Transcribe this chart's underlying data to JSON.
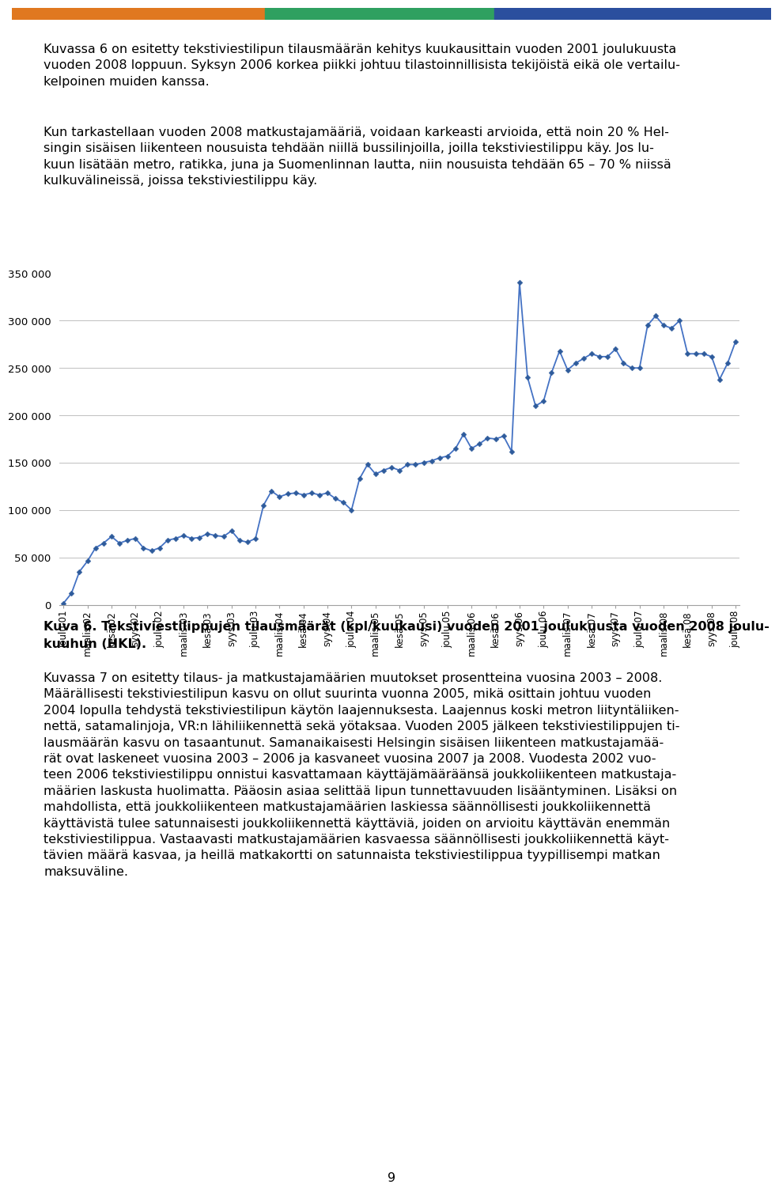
{
  "text_top1": "Kuvassa 6 on esitetty tekstiviestilipun tilausmäärän kehitys kuukausittain vuoden 2001 joulukuusta\nvuoden 2008 loppuun. Syksyn 2006 korkea piikki johtuu tilastoinnillisista tekijöistä eikä ole vertailu-\nkelpoinen muiden kanssa.",
  "text_top2": "Kun tarkastellaan vuoden 2008 matkustajamääriä, voidaan karkeasti arvioida, että noin 20 % Hel-\nsingin sisäisen liikenteen nousuista tehdään niillä bussilinjoilla, joilla tekstiviestilippu käy. Jos lu-\nkuun lisätään metro, ratikka, juna ja Suomenlinnan lautta, niin nousuista tehdään 65 – 70 % niissä\nkulkuvälineissä, joissa tekstiviestilippu käy.",
  "caption_line1": "Kuva 6. Tekstiviestilippujen tilausmäärät (kpl/kuukausi) vuoden 2001 joulukuusta vuoden 2008 joulu-",
  "caption_line2": "kuuhun (HKL).",
  "text_bottom": "Kuvassa 7 on esitetty tilaus- ja matkustajamäärien muutokset prosentteina vuosina 2003 – 2008.\nMäärällisesti tekstiviestilipun kasvu on ollut suurinta vuonna 2005, mikä osittain johtuu vuoden\n2004 lopulla tehdystä tekstiviestilipun käytön laajennuksesta. Laajennus koski metron liityntäliiken-\nnettä, satamalinjoja, VR:n lähiliikennettä sekä yötaksaa. Vuoden 2005 jälkeen tekstiviestilippujen ti-\nlausmäärän kasvu on tasaantunut. Samanaikaisesti Helsingin sisäisen liikenteen matkustajamää-\nrät ovat laskeneet vuosina 2003 – 2006 ja kasvaneet vuosina 2007 ja 2008. Vuodesta 2002 vuo-\nteen 2006 tekstiviestilippu onnistui kasvattamaan käyttäjämääräänsä joukkoliikenteen matkustaja-\nmäärien laskusta huolimatta. Pääosin asiaa selittää lipun tunnettavuuden lisääntyminen. Lisäksi on\nmahdollista, että joukkoliikenteen matkustajamäärien laskiessa säännöllisesti joukkoliikennettä\nkäyttävistä tulee satunnaisesti joukkoliikennettä käyttäviä, joiden on arvioitu käyttävän enemmän\ntekstiviestilippua. Vastaavasti matkustajamäärien kasvaessa säännöllisesti joukkoliikennettä käyt-\ntävien määrä kasvaa, ja heillä matkakortti on satunnaista tekstiviestilippua tyypillisempi matkan\nmaksuväline.",
  "page_number": "9",
  "header_colors": [
    "#E07820",
    "#2FA060",
    "#2B4F9E"
  ],
  "line_color": "#4472C4",
  "marker_color": "#2E5B9B",
  "chart_bg": "#FFFFFF",
  "grid_color": "#C0C0C0",
  "ylim": [
    0,
    350000
  ],
  "yticks": [
    0,
    50000,
    100000,
    150000,
    200000,
    250000,
    300000,
    350000
  ],
  "ytick_labels": [
    "0",
    "50 000",
    "100 000",
    "150 000",
    "200 000",
    "250 000",
    "300 000",
    "350 000"
  ],
  "x_labels": [
    "joulu.01",
    "maalis.02",
    "kesä.02",
    "syys.02",
    "joulu.02",
    "maalis.03",
    "kesä.03",
    "syys.03",
    "joulu.03",
    "maalis.04",
    "kesä.04",
    "syys.04",
    "joulu.04",
    "maalis.05",
    "kesä.05",
    "syys.05",
    "joulu.05",
    "maalis.06",
    "kesä.06",
    "syys.06",
    "joulu.06",
    "maalis.07",
    "kesä.07",
    "syys.07",
    "joulu.07",
    "maalis.08",
    "kesä.08",
    "syys.08",
    "joulu.08"
  ],
  "values": [
    1500,
    12000,
    35000,
    46000,
    60000,
    65000,
    72000,
    65000,
    68000,
    70000,
    60000,
    57000,
    60000,
    68000,
    70000,
    73000,
    70000,
    71000,
    75000,
    73000,
    72000,
    78000,
    68000,
    66000,
    70000,
    105000,
    120000,
    114000,
    117000,
    118000,
    116000,
    118000,
    116000,
    118000,
    112000,
    108000,
    100000,
    133000,
    148000,
    138000,
    142000,
    145000,
    142000,
    148000,
    148000,
    150000,
    152000,
    155000,
    157000,
    165000,
    180000,
    165000,
    170000,
    176000,
    175000,
    178000,
    162000,
    340000,
    240000,
    210000,
    215000,
    245000,
    268000,
    248000,
    255000,
    260000,
    265000,
    262000,
    262000,
    270000,
    255000,
    250000,
    250000,
    295000,
    305000,
    295000,
    292000,
    300000,
    265000,
    265000,
    265000,
    262000,
    238000,
    255000,
    278000
  ]
}
